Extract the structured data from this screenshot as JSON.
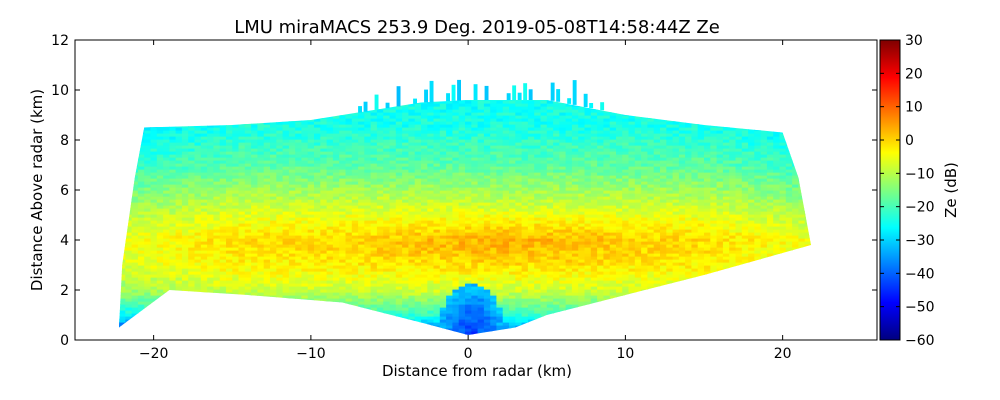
{
  "chart_data": {
    "type": "heatmap",
    "title": "LMU miraMACS 253.9 Deg. 2019-05-08T14:58:44Z  Ze",
    "xlabel": "Distance from radar (km)",
    "ylabel": "Distance Above radar  (km)",
    "xlim": [
      -25,
      26
    ],
    "ylim": [
      0,
      12
    ],
    "xticks": [
      -20,
      -10,
      0,
      10,
      20
    ],
    "xtick_labels": [
      "−20",
      "−10",
      "0",
      "10",
      "20"
    ],
    "yticks": [
      0,
      2,
      4,
      6,
      8,
      10,
      12
    ],
    "ytick_labels": [
      "0",
      "2",
      "4",
      "6",
      "8",
      "10",
      "12"
    ],
    "colorbar": {
      "label": "Ze (dB)",
      "range": [
        -60,
        30
      ],
      "ticks": [
        -60,
        -50,
        -40,
        -30,
        -20,
        -10,
        0,
        10,
        20,
        30
      ],
      "tick_labels": [
        "−60",
        "−50",
        "−40",
        "−30",
        "−20",
        "−10",
        "0",
        "10",
        "20",
        "30"
      ],
      "colormap": "jet",
      "colormap_stops": [
        "#00007f",
        "#0000ff",
        "#007fff",
        "#00ffff",
        "#7fff7f",
        "#ffff00",
        "#ff7f00",
        "#ff0000",
        "#7f0000"
      ]
    },
    "field": {
      "description_units": "Ze in dB over range-height",
      "echo_region": {
        "left_edge": [
          [
            -22.2,
            0.5
          ],
          [
            -22.0,
            3.0
          ],
          [
            -21.2,
            6.5
          ],
          [
            -20.6,
            8.5
          ]
        ],
        "top_edge": [
          [
            -20.6,
            8.5
          ],
          [
            -15,
            8.6
          ],
          [
            -10,
            8.8
          ],
          [
            -6,
            9.2
          ],
          [
            -3,
            9.5
          ],
          [
            0,
            9.6
          ],
          [
            5,
            9.6
          ],
          [
            10,
            9.0
          ],
          [
            15,
            8.6
          ],
          [
            20,
            8.3
          ]
        ],
        "right_edge": [
          [
            20,
            8.3
          ],
          [
            21.0,
            6.5
          ],
          [
            21.8,
            3.8
          ]
        ],
        "bottom_edge": [
          [
            21.8,
            3.8
          ],
          [
            15,
            2.6
          ],
          [
            10,
            1.8
          ],
          [
            5,
            1.0
          ],
          [
            3,
            0.5
          ],
          [
            0,
            0.2
          ],
          [
            -3,
            0.7
          ],
          [
            -8,
            1.5
          ],
          [
            -14,
            1.8
          ],
          [
            -19,
            2.0
          ],
          [
            -22.2,
            0.5
          ]
        ]
      },
      "reflectivity_profile": [
        {
          "height": 9.5,
          "ze": -25
        },
        {
          "height": 8.5,
          "ze": -24
        },
        {
          "height": 7.0,
          "ze": -18
        },
        {
          "height": 6.0,
          "ze": -12
        },
        {
          "height": 5.0,
          "ze": -6
        },
        {
          "height": 4.0,
          "ze": -1
        },
        {
          "height": 3.0,
          "ze": -3
        },
        {
          "height": 2.0,
          "ze": -8
        },
        {
          "height": 1.0,
          "ze": -22
        },
        {
          "height": 0.3,
          "ze": -40
        }
      ],
      "core_maximum": {
        "x": 2,
        "height": 3.8,
        "ze": 2
      },
      "upper_fringe_ze": -28,
      "near_radar_ze": -45
    }
  }
}
